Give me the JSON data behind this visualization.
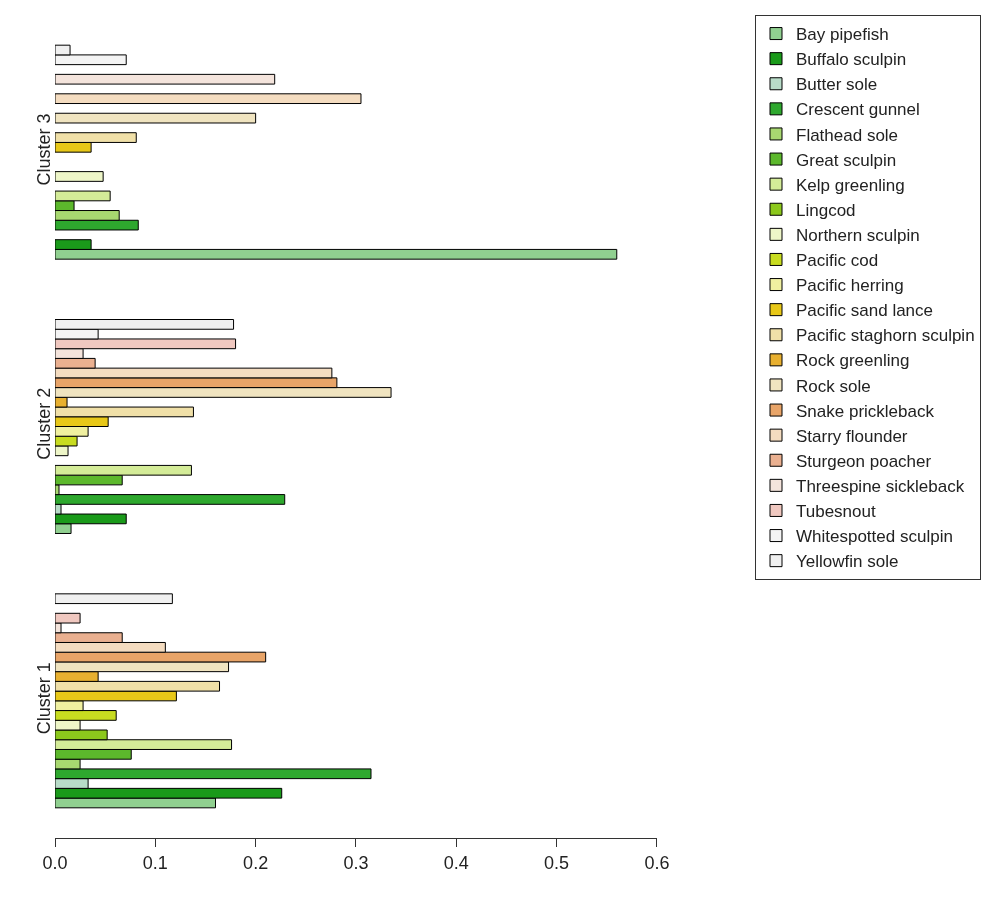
{
  "chart_data": {
    "type": "bar",
    "orientation": "horizontal",
    "categories": [
      "Cluster 3",
      "Cluster 2",
      "Cluster 1"
    ],
    "xlim": [
      0,
      0.6
    ],
    "xticks": [
      {
        "value": 0,
        "label": "0.0"
      },
      0.1,
      0.2,
      0.3,
      0.4,
      0.5,
      0.6
    ],
    "legend": "top right",
    "series": [
      {
        "name": "Bay pipefish",
        "color": "#90d090",
        "values": [
          0.56,
          0.016,
          0.16
        ]
      },
      {
        "name": "Buffalo sculpin",
        "color": "#1a9a1a",
        "values": [
          0.036,
          0.071,
          0.226
        ]
      },
      {
        "name": "Butter sole",
        "color": "#b8dcc8",
        "values": [
          null,
          0.006,
          0.033
        ]
      },
      {
        "name": "Crescent gunnel",
        "color": "#2ea82e",
        "values": [
          0.083,
          0.229,
          0.315
        ]
      },
      {
        "name": "Flathead sole",
        "color": "#a8d870",
        "values": [
          0.064,
          0.004,
          0.025
        ]
      },
      {
        "name": "Great sculpin",
        "color": "#5cb82c",
        "values": [
          0.019,
          0.067,
          0.076
        ]
      },
      {
        "name": "Kelp greenling",
        "color": "#d4ec98",
        "values": [
          0.055,
          0.136,
          0.176
        ]
      },
      {
        "name": "Lingcod",
        "color": "#8cc81c",
        "values": [
          null,
          null,
          0.052
        ]
      },
      {
        "name": "Northern sculpin",
        "color": "#eef6c8",
        "values": [
          0.048,
          0.013,
          0.025
        ]
      },
      {
        "name": "Pacific cod",
        "color": "#c8dc20",
        "values": [
          null,
          0.022,
          0.061
        ]
      },
      {
        "name": "Pacific herring",
        "color": "#f0f0a0",
        "values": [
          null,
          0.033,
          0.028
        ]
      },
      {
        "name": "Pacific sand lance",
        "color": "#e8c818",
        "values": [
          0.036,
          0.053,
          0.121
        ]
      },
      {
        "name": "Pacific staghorn sculpin",
        "color": "#f0e0a8",
        "values": [
          0.081,
          0.138,
          0.164
        ]
      },
      {
        "name": "Rock greenling",
        "color": "#e8b030",
        "values": [
          null,
          0.012,
          0.043
        ]
      },
      {
        "name": "Rock sole",
        "color": "#f0e4c0",
        "values": [
          0.2,
          0.335,
          0.173
        ]
      },
      {
        "name": "Snake prickleback",
        "color": "#e8a468",
        "values": [
          null,
          0.281,
          0.21
        ]
      },
      {
        "name": "Starry flounder",
        "color": "#f4dcc0",
        "values": [
          0.305,
          0.276,
          0.11
        ]
      },
      {
        "name": "Sturgeon poacher",
        "color": "#eab090",
        "values": [
          null,
          0.04,
          0.067
        ]
      },
      {
        "name": "Threespine sickleback",
        "color": "#f4e4dc",
        "values": [
          0.219,
          0.028,
          0.006
        ]
      },
      {
        "name": "Tubesnout",
        "color": "#f0c8c0",
        "values": [
          null,
          0.18,
          0.025
        ]
      },
      {
        "name": "Whitespotted sculpin",
        "color": "#f4f4f4",
        "values": [
          0.071,
          0.043,
          null
        ]
      },
      {
        "name": "Yellowfin sole",
        "color": "#f0f0f0",
        "values": [
          0.015,
          0.178,
          0.117
        ]
      }
    ]
  }
}
